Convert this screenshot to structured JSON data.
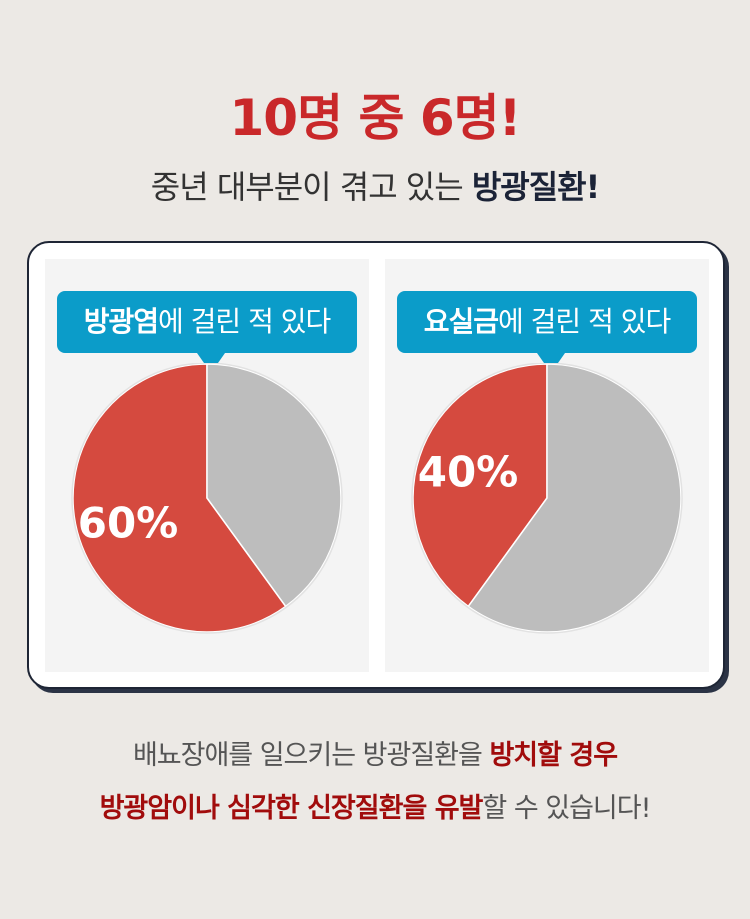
{
  "header": {
    "title": "10명 중 6명!",
    "subtitle_plain": "중년 대부분이 겪고 있는 ",
    "subtitle_bold": "방광질환!"
  },
  "chart_data": [
    {
      "type": "pie",
      "title_bold": "방광염",
      "title_rest": "에 걸린 적 있다",
      "values": [
        60,
        40
      ],
      "labels": [
        "60%",
        ""
      ],
      "colors": [
        "#d54a3f",
        "#bdbdbd"
      ]
    },
    {
      "type": "pie",
      "title_bold": "요실금",
      "title_rest": "에 걸린 적 있다",
      "values": [
        40,
        60
      ],
      "labels": [
        "40%",
        ""
      ],
      "colors": [
        "#d54a3f",
        "#bdbdbd"
      ]
    }
  ],
  "footer": {
    "line1_plain": "배뇨장애를 일으키는 방광질환을 ",
    "line1_bold": "방치할 경우",
    "line2_bold": "방광암이나 심각한 신장질환을 유발",
    "line2_plain": "할 수 있습니다!"
  }
}
